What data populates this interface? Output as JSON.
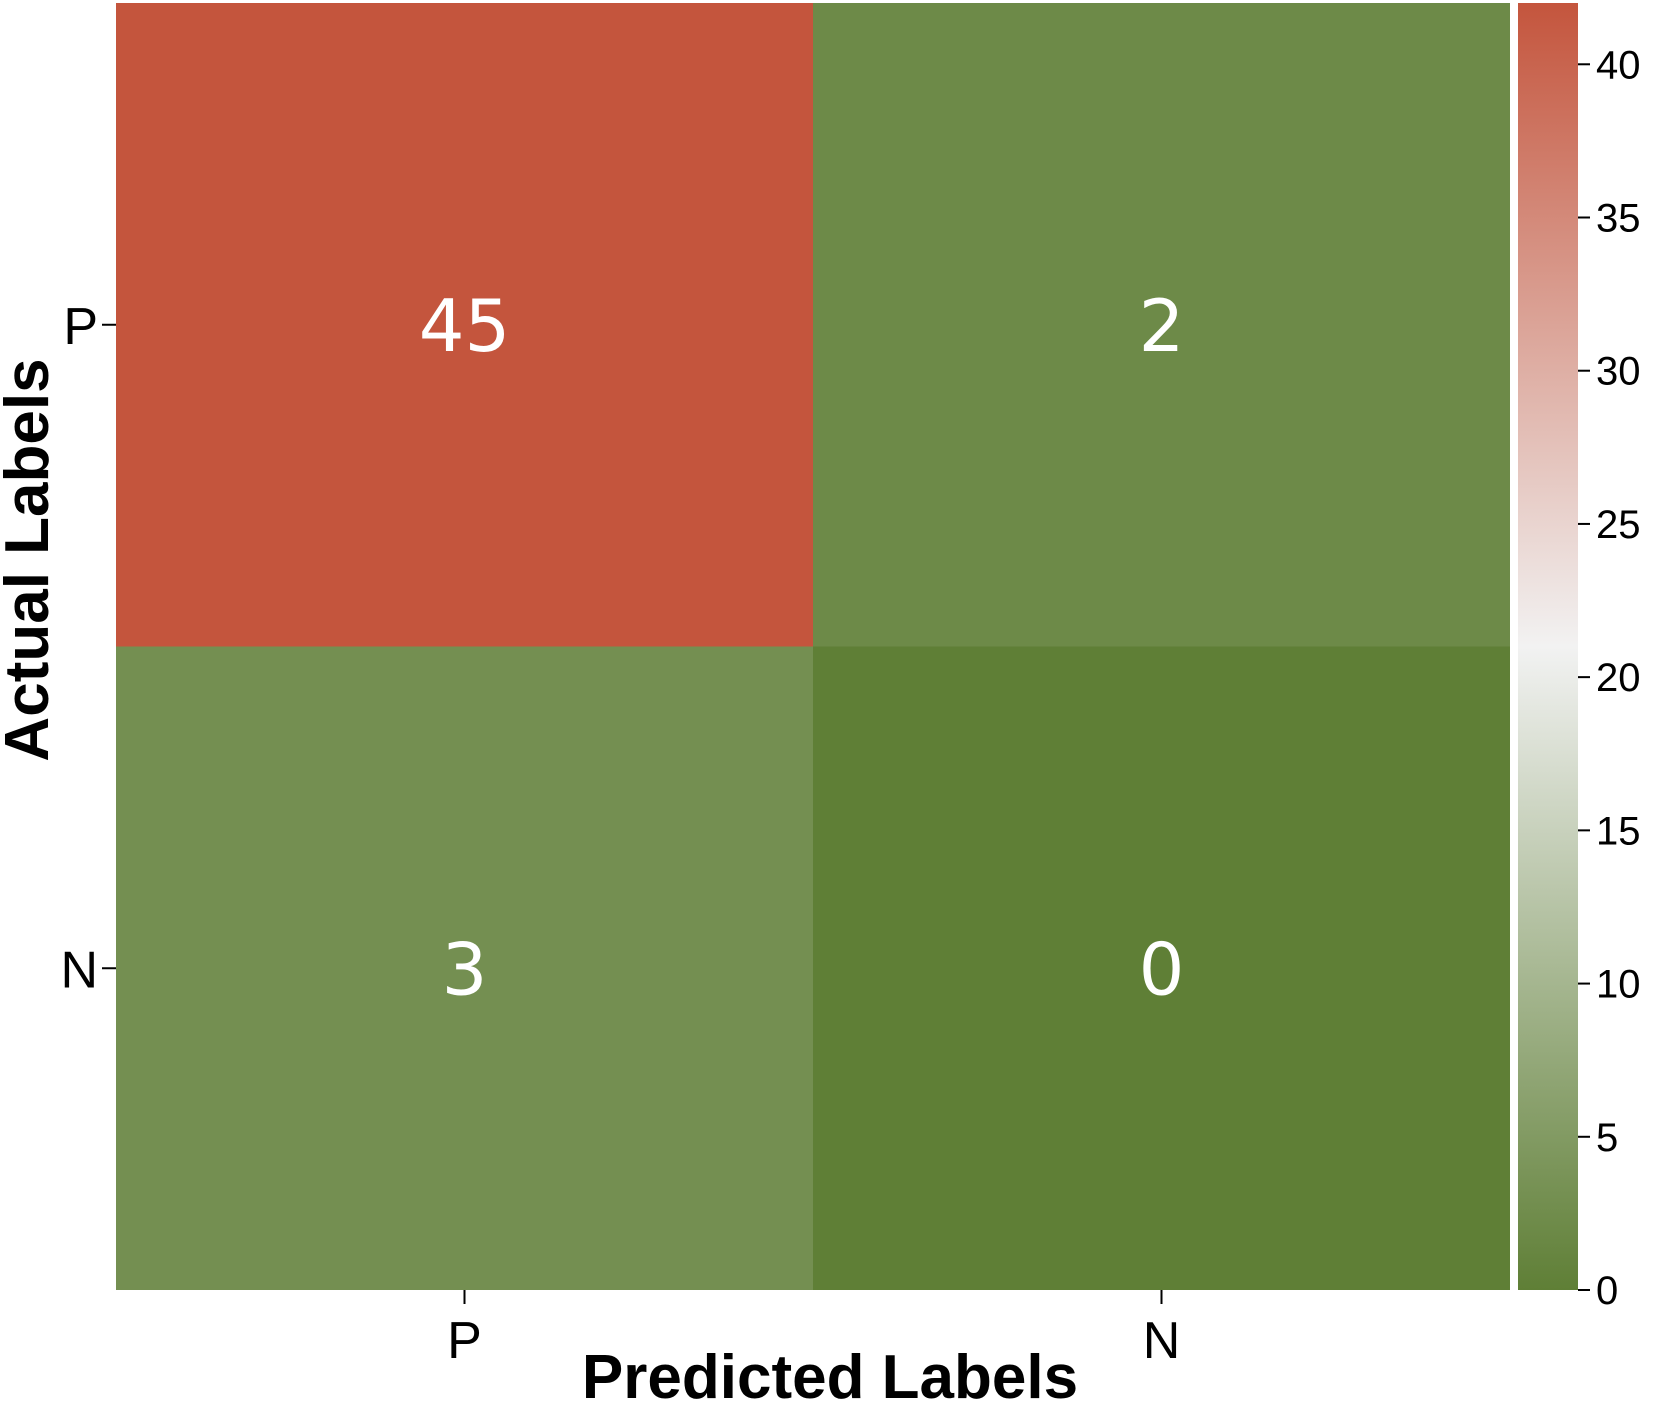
{
  "chart_data": {
    "type": "heatmap",
    "title": "",
    "xlabel": "Predicted Labels",
    "ylabel": "Actual Labels",
    "x_categories": [
      "P",
      "N"
    ],
    "y_categories": [
      "P",
      "N"
    ],
    "values": [
      [
        45,
        2
      ],
      [
        3,
        0
      ]
    ],
    "colorbar": {
      "vmin": 0,
      "vmax": 42,
      "ticks": [
        "0",
        "5",
        "10",
        "15",
        "20",
        "25",
        "30",
        "35",
        "40"
      ],
      "colormap": [
        "#5f7f36",
        "#f2f2f2",
        "#c4553d"
      ]
    },
    "grid": false,
    "legend": "colorbar-right"
  }
}
